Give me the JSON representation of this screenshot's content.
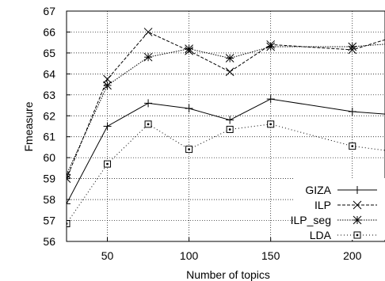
{
  "chart_data": {
    "type": "line",
    "title": "",
    "xlabel": "Number of topics",
    "ylabel": "Fmeasure",
    "xlim": [
      25,
      220
    ],
    "ylim": [
      56,
      67
    ],
    "xticks": [
      50,
      100,
      150,
      200
    ],
    "yticks": [
      56,
      57,
      58,
      59,
      60,
      61,
      62,
      63,
      64,
      65,
      66,
      67
    ],
    "grid": true,
    "legend_position": "bottom-right",
    "x": [
      25,
      50,
      75,
      100,
      125,
      150,
      200,
      225
    ],
    "series": [
      {
        "name": "GIZA",
        "marker": "plus",
        "line_style": "solid",
        "values": [
          57.8,
          61.5,
          62.6,
          62.35,
          61.8,
          62.8,
          62.2,
          62.05
        ]
      },
      {
        "name": "ILP",
        "marker": "x",
        "line_style": "dashed",
        "values": [
          59.0,
          63.75,
          66.0,
          65.1,
          64.1,
          65.4,
          65.15,
          65.75
        ]
      },
      {
        "name": "ILP_seg",
        "marker": "star",
        "line_style": "dense-dotted",
        "values": [
          59.2,
          63.45,
          64.8,
          65.2,
          64.75,
          65.3,
          65.3,
          65.45
        ]
      },
      {
        "name": "LDA",
        "marker": "square-dot",
        "line_style": "sparse-dotted",
        "values": [
          56.85,
          59.7,
          61.6,
          60.4,
          61.35,
          61.6,
          60.55,
          60.3
        ]
      }
    ]
  }
}
